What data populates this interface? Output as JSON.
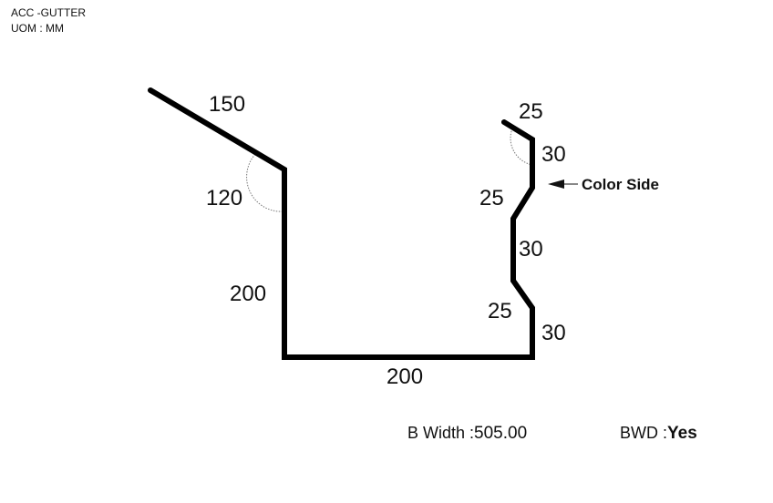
{
  "header": {
    "title": "ACC -GUTTER",
    "uom": "UOM : MM"
  },
  "profile": {
    "dims": {
      "lip_top": "150",
      "angle_left": "120",
      "left_wall": "200",
      "base": "200",
      "hook_top": "25",
      "right_seg_1": "30",
      "right_jog_1": "25",
      "right_seg_2": "30",
      "right_jog_2": "25",
      "right_seg_3": "30"
    },
    "callout": "Color Side",
    "line_color": "#000000"
  },
  "footer": {
    "bwidth_label": "B Width :",
    "bwidth_value": "505.00",
    "bwd_label": "BWD :",
    "bwd_value": "Yes"
  }
}
